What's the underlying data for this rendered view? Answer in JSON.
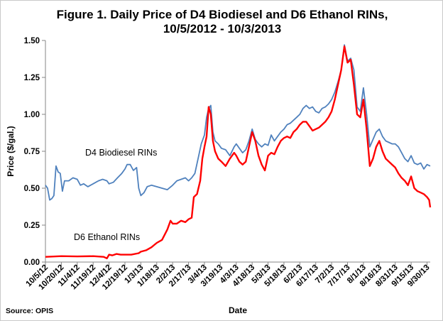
{
  "title_line1": "Figure 1. Daily Price of D4 Biodiesel and D6 Ethanol RINs,",
  "title_line2": "10/5/2012 - 10/3/2013",
  "source": "Source: OPIS",
  "chart_data": {
    "type": "line",
    "xlabel": "Date",
    "ylabel": "Price ($/gal.)",
    "ylim": [
      0,
      1.5
    ],
    "yticks": [
      "0.00",
      "0.25",
      "0.50",
      "0.75",
      "1.00",
      "1.25",
      "1.50"
    ],
    "xticks": [
      "10/5/12",
      "10/20/12",
      "11/4/12",
      "11/19/12",
      "12/4/12",
      "12/19/12",
      "1/3/13",
      "1/18/13",
      "2/2/13",
      "2/17/13",
      "3/4/13",
      "3/19/13",
      "4/3/13",
      "4/18/13",
      "5/3/13",
      "5/18/13",
      "6/2/13",
      "6/17/13",
      "7/2/13",
      "7/17/13",
      "8/1/13",
      "8/16/13",
      "8/31/13",
      "9/15/13",
      "9/30/13"
    ],
    "grid": false,
    "legend": "none",
    "series": [
      {
        "name": "D4 Biodiesel RINs",
        "color": "#4f81bd",
        "points": [
          [
            "10/5/12",
            0.52
          ],
          [
            "10/7/12",
            0.5
          ],
          [
            "10/9/12",
            0.42
          ],
          [
            "10/11/12",
            0.43
          ],
          [
            "10/13/12",
            0.45
          ],
          [
            "10/15/12",
            0.65
          ],
          [
            "10/17/12",
            0.61
          ],
          [
            "10/19/12",
            0.6
          ],
          [
            "10/21/12",
            0.48
          ],
          [
            "10/23/12",
            0.55
          ],
          [
            "10/27/12",
            0.55
          ],
          [
            "10/31/12",
            0.57
          ],
          [
            "11/4/12",
            0.56
          ],
          [
            "11/7/12",
            0.52
          ],
          [
            "11/10/12",
            0.53
          ],
          [
            "11/14/12",
            0.51
          ],
          [
            "11/19/12",
            0.53
          ],
          [
            "11/24/12",
            0.55
          ],
          [
            "11/28/12",
            0.56
          ],
          [
            "12/2/12",
            0.55
          ],
          [
            "12/4/12",
            0.53
          ],
          [
            "12/8/12",
            0.54
          ],
          [
            "12/12/12",
            0.57
          ],
          [
            "12/16/12",
            0.6
          ],
          [
            "12/19/12",
            0.63
          ],
          [
            "12/21/12",
            0.66
          ],
          [
            "12/24/12",
            0.66
          ],
          [
            "12/27/12",
            0.62
          ],
          [
            "12/30/12",
            0.64
          ],
          [
            "1/1/13",
            0.5
          ],
          [
            "1/3/13",
            0.45
          ],
          [
            "1/6/13",
            0.47
          ],
          [
            "1/9/13",
            0.51
          ],
          [
            "1/13/13",
            0.52
          ],
          [
            "1/18/13",
            0.51
          ],
          [
            "1/23/13",
            0.5
          ],
          [
            "1/28/13",
            0.49
          ],
          [
            "2/2/13",
            0.52
          ],
          [
            "2/6/13",
            0.55
          ],
          [
            "2/10/13",
            0.56
          ],
          [
            "2/14/13",
            0.57
          ],
          [
            "2/17/13",
            0.55
          ],
          [
            "2/20/13",
            0.57
          ],
          [
            "2/23/13",
            0.6
          ],
          [
            "2/26/13",
            0.7
          ],
          [
            "3/1/13",
            0.8
          ],
          [
            "3/4/13",
            0.86
          ],
          [
            "3/6/13",
            0.98
          ],
          [
            "3/8/13",
            1.04
          ],
          [
            "3/10/13",
            1.06
          ],
          [
            "3/12/13",
            0.88
          ],
          [
            "3/14/13",
            0.82
          ],
          [
            "3/17/13",
            0.8
          ],
          [
            "3/20/13",
            0.77
          ],
          [
            "3/24/13",
            0.76
          ],
          [
            "3/28/13",
            0.72
          ],
          [
            "4/1/13",
            0.78
          ],
          [
            "4/3/13",
            0.8
          ],
          [
            "4/6/13",
            0.77
          ],
          [
            "4/9/13",
            0.74
          ],
          [
            "4/12/13",
            0.76
          ],
          [
            "4/15/13",
            0.82
          ],
          [
            "4/18/13",
            0.9
          ],
          [
            "4/21/13",
            0.83
          ],
          [
            "4/24/13",
            0.8
          ],
          [
            "4/27/13",
            0.78
          ],
          [
            "4/30/13",
            0.8
          ],
          [
            "5/3/13",
            0.79
          ],
          [
            "5/6/13",
            0.86
          ],
          [
            "5/9/13",
            0.82
          ],
          [
            "5/12/13",
            0.85
          ],
          [
            "5/15/13",
            0.88
          ],
          [
            "5/18/13",
            0.9
          ],
          [
            "5/21/13",
            0.93
          ],
          [
            "5/24/13",
            0.94
          ],
          [
            "5/27/13",
            0.96
          ],
          [
            "5/30/13",
            0.98
          ],
          [
            "6/2/13",
            1.0
          ],
          [
            "6/5/13",
            1.04
          ],
          [
            "6/8/13",
            1.06
          ],
          [
            "6/11/13",
            1.04
          ],
          [
            "6/14/13",
            1.05
          ],
          [
            "6/17/13",
            1.02
          ],
          [
            "6/20/13",
            1.01
          ],
          [
            "6/23/13",
            1.04
          ],
          [
            "6/26/13",
            1.05
          ],
          [
            "6/29/13",
            1.07
          ],
          [
            "7/2/13",
            1.1
          ],
          [
            "7/5/13",
            1.15
          ],
          [
            "7/8/13",
            1.22
          ],
          [
            "7/11/13",
            1.3
          ],
          [
            "7/14/13",
            1.47
          ],
          [
            "7/17/13",
            1.36
          ],
          [
            "7/20/13",
            1.38
          ],
          [
            "7/23/13",
            1.3
          ],
          [
            "7/26/13",
            1.05
          ],
          [
            "7/29/13",
            1.02
          ],
          [
            "8/1/13",
            1.18
          ],
          [
            "8/4/13",
            1.0
          ],
          [
            "8/7/13",
            0.78
          ],
          [
            "8/10/13",
            0.83
          ],
          [
            "8/13/13",
            0.88
          ],
          [
            "8/16/13",
            0.9
          ],
          [
            "8/19/13",
            0.85
          ],
          [
            "8/22/13",
            0.82
          ],
          [
            "8/25/13",
            0.81
          ],
          [
            "8/28/13",
            0.8
          ],
          [
            "8/31/13",
            0.8
          ],
          [
            "9/3/13",
            0.78
          ],
          [
            "9/6/13",
            0.74
          ],
          [
            "9/9/13",
            0.7
          ],
          [
            "9/12/13",
            0.68
          ],
          [
            "9/15/13",
            0.72
          ],
          [
            "9/18/13",
            0.67
          ],
          [
            "9/21/13",
            0.66
          ],
          [
            "9/24/13",
            0.67
          ],
          [
            "9/27/13",
            0.63
          ],
          [
            "9/30/13",
            0.66
          ],
          [
            "10/3/13",
            0.65
          ]
        ]
      },
      {
        "name": "D6 Ethanol RINs",
        "color": "#ff0000",
        "points": [
          [
            "10/5/12",
            0.035
          ],
          [
            "10/20/12",
            0.04
          ],
          [
            "11/4/12",
            0.038
          ],
          [
            "11/19/12",
            0.04
          ],
          [
            "11/29/12",
            0.035
          ],
          [
            "12/2/12",
            0.025
          ],
          [
            "12/4/12",
            0.05
          ],
          [
            "12/7/12",
            0.045
          ],
          [
            "12/11/12",
            0.055
          ],
          [
            "12/15/12",
            0.05
          ],
          [
            "12/19/12",
            0.05
          ],
          [
            "12/25/12",
            0.05
          ],
          [
            "1/1/13",
            0.06
          ],
          [
            "1/3/13",
            0.07
          ],
          [
            "1/8/13",
            0.08
          ],
          [
            "1/13/13",
            0.1
          ],
          [
            "1/18/13",
            0.13
          ],
          [
            "1/23/13",
            0.15
          ],
          [
            "1/28/13",
            0.22
          ],
          [
            "1/31/13",
            0.28
          ],
          [
            "2/2/13",
            0.26
          ],
          [
            "2/6/13",
            0.26
          ],
          [
            "2/10/13",
            0.28
          ],
          [
            "2/14/13",
            0.27
          ],
          [
            "2/17/13",
            0.29
          ],
          [
            "2/20/13",
            0.3
          ],
          [
            "2/22/13",
            0.44
          ],
          [
            "2/25/13",
            0.46
          ],
          [
            "2/28/13",
            0.55
          ],
          [
            "3/2/13",
            0.7
          ],
          [
            "3/4/13",
            0.78
          ],
          [
            "3/6/13",
            0.85
          ],
          [
            "3/8/13",
            1.05
          ],
          [
            "3/10/13",
            1.0
          ],
          [
            "3/12/13",
            0.82
          ],
          [
            "3/14/13",
            0.75
          ],
          [
            "3/17/13",
            0.7
          ],
          [
            "3/20/13",
            0.68
          ],
          [
            "3/24/13",
            0.65
          ],
          [
            "3/28/13",
            0.7
          ],
          [
            "4/1/13",
            0.74
          ],
          [
            "4/3/13",
            0.72
          ],
          [
            "4/6/13",
            0.68
          ],
          [
            "4/9/13",
            0.66
          ],
          [
            "4/12/13",
            0.68
          ],
          [
            "4/15/13",
            0.78
          ],
          [
            "4/18/13",
            0.88
          ],
          [
            "4/21/13",
            0.82
          ],
          [
            "4/24/13",
            0.72
          ],
          [
            "4/27/13",
            0.66
          ],
          [
            "4/30/13",
            0.62
          ],
          [
            "5/3/13",
            0.72
          ],
          [
            "5/6/13",
            0.74
          ],
          [
            "5/9/13",
            0.73
          ],
          [
            "5/12/13",
            0.78
          ],
          [
            "5/15/13",
            0.82
          ],
          [
            "5/18/13",
            0.84
          ],
          [
            "5/21/13",
            0.85
          ],
          [
            "5/24/13",
            0.84
          ],
          [
            "5/27/13",
            0.88
          ],
          [
            "5/30/13",
            0.9
          ],
          [
            "6/2/13",
            0.93
          ],
          [
            "6/5/13",
            0.95
          ],
          [
            "6/8/13",
            0.95
          ],
          [
            "6/11/13",
            0.92
          ],
          [
            "6/14/13",
            0.89
          ],
          [
            "6/17/13",
            0.9
          ],
          [
            "6/20/13",
            0.91
          ],
          [
            "6/23/13",
            0.93
          ],
          [
            "6/26/13",
            0.95
          ],
          [
            "6/29/13",
            0.98
          ],
          [
            "7/2/13",
            1.02
          ],
          [
            "7/5/13",
            1.1
          ],
          [
            "7/8/13",
            1.2
          ],
          [
            "7/11/13",
            1.3
          ],
          [
            "7/14/13",
            1.46
          ],
          [
            "7/17/13",
            1.35
          ],
          [
            "7/20/13",
            1.37
          ],
          [
            "7/23/13",
            1.2
          ],
          [
            "7/26/13",
            1.0
          ],
          [
            "7/29/13",
            0.98
          ],
          [
            "8/1/13",
            1.1
          ],
          [
            "8/4/13",
            0.9
          ],
          [
            "8/7/13",
            0.65
          ],
          [
            "8/10/13",
            0.7
          ],
          [
            "8/13/13",
            0.78
          ],
          [
            "8/16/13",
            0.82
          ],
          [
            "8/19/13",
            0.75
          ],
          [
            "8/22/13",
            0.7
          ],
          [
            "8/25/13",
            0.68
          ],
          [
            "8/28/13",
            0.66
          ],
          [
            "8/31/13",
            0.64
          ],
          [
            "9/3/13",
            0.6
          ],
          [
            "9/6/13",
            0.57
          ],
          [
            "9/9/13",
            0.55
          ],
          [
            "9/12/13",
            0.52
          ],
          [
            "9/15/13",
            0.58
          ],
          [
            "9/18/13",
            0.5
          ],
          [
            "9/21/13",
            0.48
          ],
          [
            "9/24/13",
            0.47
          ],
          [
            "9/27/13",
            0.46
          ],
          [
            "9/30/13",
            0.44
          ],
          [
            "10/2/13",
            0.42
          ],
          [
            "10/3/13",
            0.37
          ]
        ]
      }
    ]
  }
}
